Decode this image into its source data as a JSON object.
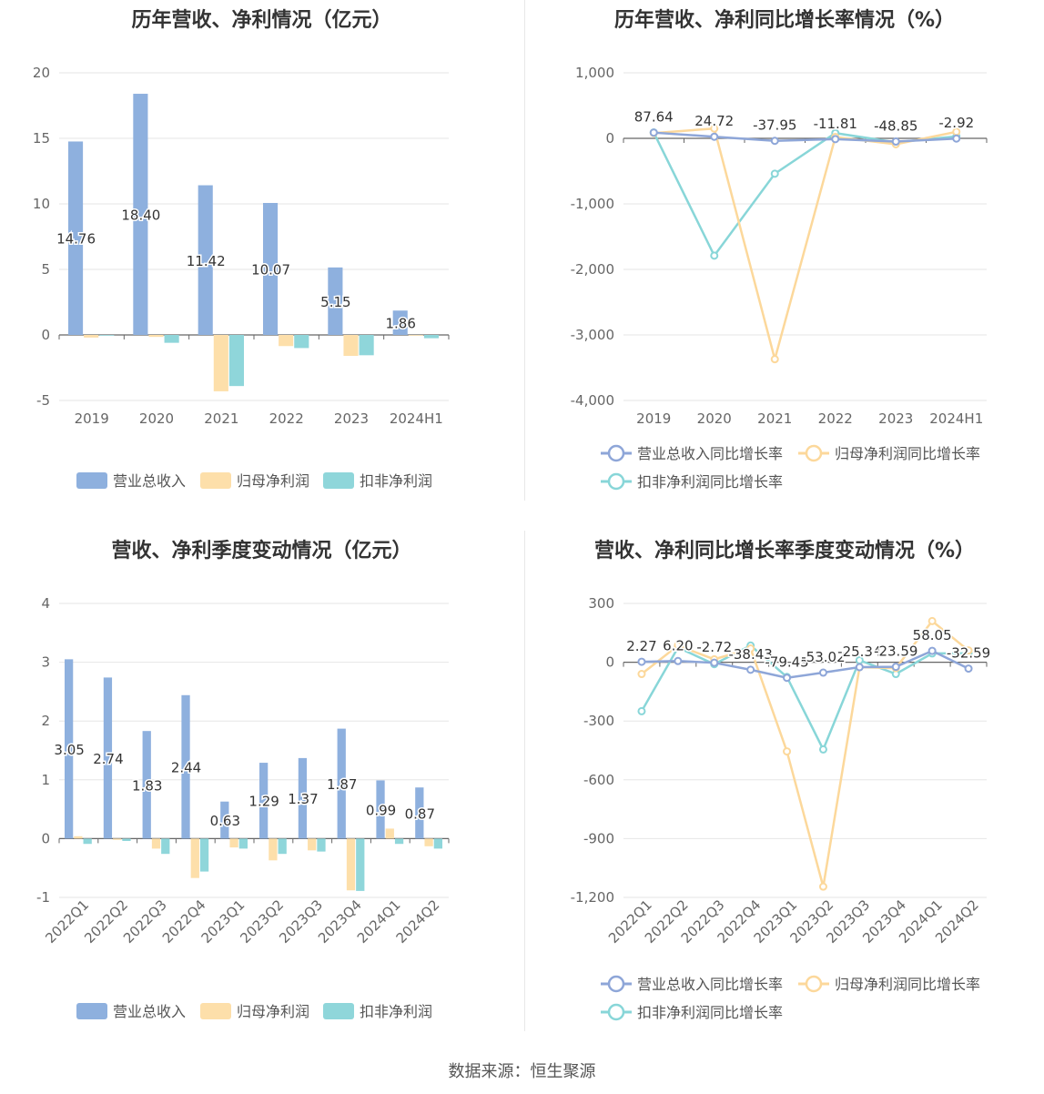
{
  "source": "数据来源：恒生聚源",
  "colors": {
    "revenue": "#8eb0de",
    "net": "#fddfaa",
    "deduct": "#8fd6da",
    "revenue_line": "#8ea6d8",
    "net_line": "#fcd89b",
    "deduct_line": "#88d6d8"
  },
  "chart_data": [
    {
      "id": "annual_amount",
      "type": "bar",
      "title": "历年营收、净利情况（亿元）",
      "categories": [
        "2019",
        "2020",
        "2021",
        "2022",
        "2023",
        "2024H1"
      ],
      "ylim": [
        -5,
        20
      ],
      "yticks": [
        "20",
        "15",
        "10",
        "5",
        "0",
        "-5"
      ],
      "ytick_values": [
        20,
        15,
        10,
        5,
        0,
        -5
      ],
      "series": [
        {
          "name": "营业总收入",
          "values": [
            14.76,
            18.4,
            11.42,
            10.07,
            5.15,
            1.86
          ]
        },
        {
          "name": "归母净利润",
          "values": [
            -0.2,
            -0.15,
            -4.3,
            -0.85,
            -1.6,
            -0.05
          ]
        },
        {
          "name": "扣非净利润",
          "values": [
            -0.05,
            -0.6,
            -3.9,
            -1.0,
            -1.55,
            -0.25
          ]
        }
      ],
      "data_labels": [
        "14.76",
        "18.40",
        "11.42",
        "10.07",
        "5.15",
        "1.86"
      ],
      "legend": "bottom"
    },
    {
      "id": "annual_growth",
      "type": "line",
      "title": "历年营收、净利同比增长率情况（%）",
      "categories": [
        "2019",
        "2020",
        "2021",
        "2022",
        "2023",
        "2024H1"
      ],
      "ylim": [
        -4000,
        1000
      ],
      "yticks": [
        "1,000",
        "0",
        "-1,000",
        "-2,000",
        "-3,000",
        "-4,000"
      ],
      "ytick_values": [
        1000,
        0,
        -1000,
        -2000,
        -3000,
        -4000
      ],
      "series": [
        {
          "name": "营业总收入同比增长率",
          "values": [
            87.64,
            24.72,
            -37.95,
            -11.81,
            -48.85,
            -2.92
          ]
        },
        {
          "name": "归母净利润同比增长率",
          "values": [
            80,
            150,
            -3370,
            20,
            -90,
            100
          ]
        },
        {
          "name": "扣非净利润同比增长率",
          "values": [
            90,
            -1790,
            -540,
            80,
            -60,
            30
          ]
        }
      ],
      "data_labels": [
        "87.64",
        "24.72",
        "-37.95",
        "-11.81",
        "-48.85",
        "-2.92"
      ],
      "legend": "bottom"
    },
    {
      "id": "quarter_amount",
      "type": "bar",
      "title": "营收、净利季度变动情况（亿元）",
      "categories": [
        "2022Q1",
        "2022Q2",
        "2022Q3",
        "2022Q4",
        "2023Q1",
        "2023Q2",
        "2023Q3",
        "2023Q4",
        "2024Q1",
        "2024Q2"
      ],
      "ylim": [
        -1,
        4
      ],
      "yticks": [
        "4",
        "3",
        "2",
        "1",
        "0",
        "-1"
      ],
      "ytick_values": [
        4,
        3,
        2,
        1,
        0,
        -1
      ],
      "series": [
        {
          "name": "营业总收入",
          "values": [
            3.05,
            2.74,
            1.83,
            2.44,
            0.63,
            1.29,
            1.37,
            1.87,
            0.99,
            0.87
          ]
        },
        {
          "name": "归母净利润",
          "values": [
            0.04,
            -0.02,
            -0.17,
            -0.67,
            -0.15,
            -0.37,
            -0.2,
            -0.88,
            0.17,
            -0.13
          ]
        },
        {
          "name": "扣非净利润",
          "values": [
            -0.09,
            -0.04,
            -0.26,
            -0.56,
            -0.17,
            -0.26,
            -0.22,
            -0.89,
            -0.09,
            -0.17
          ]
        }
      ],
      "data_labels": [
        "3.05",
        "2.74",
        "1.83",
        "2.44",
        "0.63",
        "1.29",
        "1.37",
        "1.87",
        "0.99",
        "0.87"
      ],
      "legend": "bottom"
    },
    {
      "id": "quarter_growth",
      "type": "line",
      "title": "营收、净利同比增长率季度变动情况（%）",
      "categories": [
        "2022Q1",
        "2022Q2",
        "2022Q3",
        "2022Q4",
        "2023Q1",
        "2023Q2",
        "2023Q3",
        "2023Q4",
        "2024Q1",
        "2024Q2"
      ],
      "ylim": [
        -1200,
        300
      ],
      "yticks": [
        "300",
        "0",
        "-300",
        "-600",
        "-900",
        "-1,200"
      ],
      "ytick_values": [
        300,
        0,
        -300,
        -600,
        -900,
        -1200
      ],
      "series": [
        {
          "name": "营业总收入同比增长率",
          "values": [
            2.27,
            6.2,
            -2.72,
            -38.43,
            -79.45,
            -53.02,
            -25.34,
            -23.59,
            58.05,
            -32.59
          ]
        },
        {
          "name": "归母净利润同比增长率",
          "values": [
            -60,
            85,
            15,
            70,
            -455,
            -1145,
            -25,
            -30,
            210,
            60
          ]
        },
        {
          "name": "扣非净利润同比增长率",
          "values": [
            -250,
            75,
            -10,
            85,
            -75,
            -445,
            10,
            -60,
            45,
            45
          ]
        }
      ],
      "data_labels": [
        "2.27",
        "6.20",
        "-2.72",
        "-38.43",
        "-79.45",
        "-53.02",
        "-25.34",
        "-23.59",
        "58.05",
        "-32.59"
      ],
      "legend": "bottom"
    }
  ]
}
